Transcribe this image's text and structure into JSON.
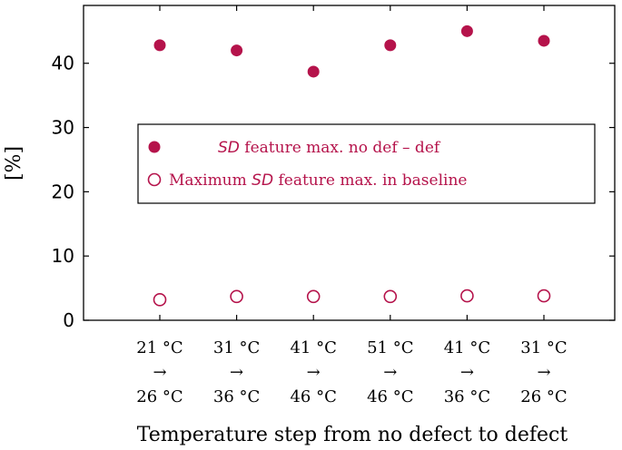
{
  "chart_data": {
    "type": "scatter",
    "title": "",
    "xlabel": "Temperature step from no defect to defect",
    "ylabel": "[%]",
    "ylim": [
      0,
      49
    ],
    "yticks": [
      0,
      10,
      20,
      30,
      40
    ],
    "grid": false,
    "legend_position": "center",
    "categories": [
      {
        "from": "21 °C",
        "arrow": "→",
        "to": "26 °C"
      },
      {
        "from": "31 °C",
        "arrow": "→",
        "to": "36 °C"
      },
      {
        "from": "41 °C",
        "arrow": "→",
        "to": "46 °C"
      },
      {
        "from": "51 °C",
        "arrow": "→",
        "to": "46 °C"
      },
      {
        "from": "41 °C",
        "arrow": "→",
        "to": "36 °C"
      },
      {
        "from": "31 °C",
        "arrow": "→",
        "to": "26 °C"
      }
    ],
    "series": [
      {
        "name": "SD feature max. no def – def",
        "legend_parts": {
          "italic": "SD",
          "rest": " feature max. no def – def"
        },
        "marker": "filled-circle",
        "color": "#b5134b",
        "values": [
          42.8,
          42.0,
          38.7,
          42.8,
          45.0,
          43.5
        ]
      },
      {
        "name": "Maximum SD feature max. in baseline",
        "legend_parts": {
          "before": "Maximum ",
          "italic": "SD",
          "rest": " feature max. in baseline"
        },
        "marker": "hollow-circle",
        "color": "#b5134b",
        "values": [
          3.2,
          3.7,
          3.7,
          3.7,
          3.8,
          3.8
        ]
      }
    ]
  }
}
